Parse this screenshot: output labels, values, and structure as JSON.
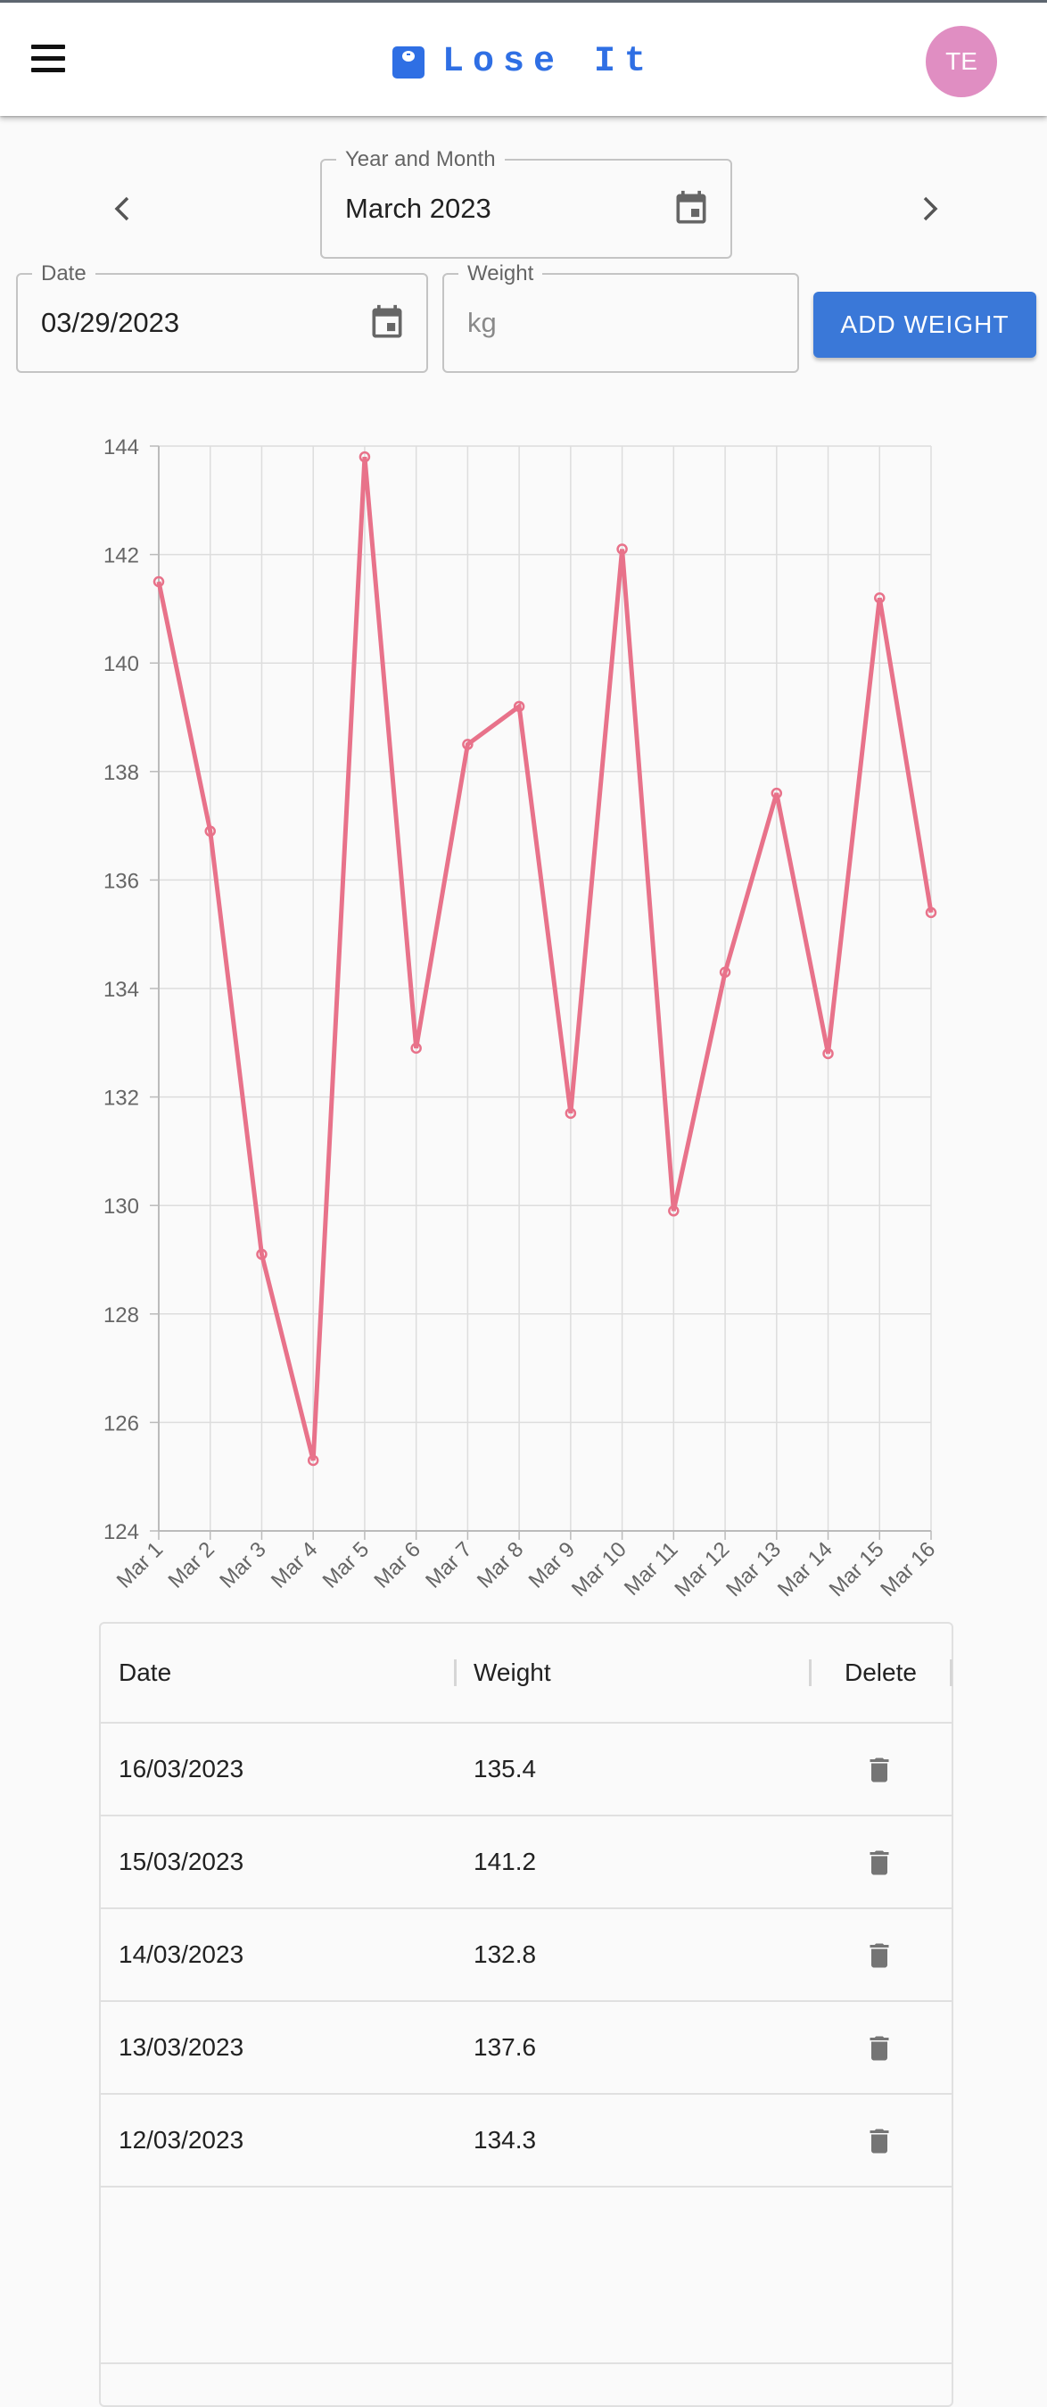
{
  "app": {
    "brand": "Lose It",
    "avatar_initials": "TE",
    "brand_color": "#2f6fe4",
    "avatar_color": "#e08ec2"
  },
  "month_picker": {
    "label": "Year and Month",
    "value": "March 2023"
  },
  "entry": {
    "date_label": "Date",
    "date_value": "03/29/2023",
    "weight_label": "Weight",
    "weight_placeholder": "kg",
    "add_button": "ADD WEIGHT",
    "button_color": "#3a78d8"
  },
  "chart_data": {
    "type": "line",
    "categories": [
      "Mar 1",
      "Mar 2",
      "Mar 3",
      "Mar 4",
      "Mar 5",
      "Mar 6",
      "Mar 7",
      "Mar 8",
      "Mar 9",
      "Mar 10",
      "Mar 11",
      "Mar 12",
      "Mar 13",
      "Mar 14",
      "Mar 15",
      "Mar 16"
    ],
    "values": [
      141.5,
      136.9,
      129.1,
      125.3,
      143.8,
      132.9,
      138.5,
      139.2,
      131.7,
      142.1,
      129.9,
      134.3,
      137.6,
      132.8,
      141.2,
      135.4
    ],
    "ylim": [
      124,
      144
    ],
    "yticks": [
      124,
      126,
      128,
      130,
      132,
      134,
      136,
      138,
      140,
      142,
      144
    ],
    "grid": true,
    "line_color": "#e8728a"
  },
  "table": {
    "columns": [
      "Date",
      "Weight",
      "Delete"
    ],
    "rows": [
      {
        "date": "16/03/2023",
        "weight": "135.4"
      },
      {
        "date": "15/03/2023",
        "weight": "141.2"
      },
      {
        "date": "14/03/2023",
        "weight": "132.8"
      },
      {
        "date": "13/03/2023",
        "weight": "137.6"
      },
      {
        "date": "12/03/2023",
        "weight": "134.3"
      }
    ]
  }
}
